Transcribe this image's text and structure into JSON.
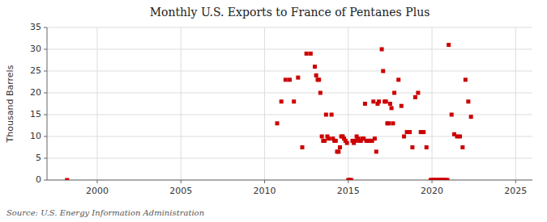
{
  "chart_data": {
    "type": "scatter",
    "title": "Monthly U.S. Exports to France of Pentanes Plus",
    "ylabel": "Thousand Barrels",
    "source": "Source: U.S. Energy Information Administration",
    "xlim": [
      1997,
      2026
    ],
    "ylim": [
      0,
      35
    ],
    "xticks": [
      2000,
      2005,
      2010,
      2015,
      2020,
      2025
    ],
    "yticks": [
      0,
      5,
      10,
      15,
      20,
      25,
      30,
      35
    ],
    "grid": true,
    "color": "#cc0000",
    "marker": "square",
    "x": [
      1998.2,
      2010.75,
      2011.0,
      2011.25,
      2011.5,
      2011.75,
      2012.0,
      2012.25,
      2012.5,
      2012.75,
      2013.0,
      2013.08,
      2013.17,
      2013.25,
      2013.33,
      2013.42,
      2013.5,
      2013.58,
      2013.67,
      2013.75,
      2013.83,
      2014.0,
      2014.08,
      2014.17,
      2014.25,
      2014.33,
      2014.42,
      2014.5,
      2014.58,
      2014.67,
      2014.75,
      2014.83,
      2014.92,
      2015.0,
      2015.08,
      2015.17,
      2015.25,
      2015.33,
      2015.42,
      2015.5,
      2015.58,
      2015.67,
      2015.75,
      2015.83,
      2015.92,
      2016.0,
      2016.08,
      2016.17,
      2016.25,
      2016.33,
      2016.42,
      2016.5,
      2016.58,
      2016.67,
      2016.75,
      2016.83,
      2017.0,
      2017.08,
      2017.17,
      2017.25,
      2017.33,
      2017.42,
      2017.5,
      2017.58,
      2017.67,
      2017.75,
      2018.0,
      2018.17,
      2018.33,
      2018.5,
      2018.67,
      2018.83,
      2019.0,
      2019.17,
      2019.33,
      2019.5,
      2019.67,
      2019.92,
      2020.0,
      2020.08,
      2020.17,
      2020.25,
      2020.33,
      2020.42,
      2020.5,
      2020.58,
      2020.67,
      2020.75,
      2020.83,
      2020.92,
      2021.0,
      2021.17,
      2021.33,
      2021.5,
      2021.67,
      2021.83,
      2022.0,
      2022.17,
      2022.33
    ],
    "values": [
      0,
      13.0,
      18.0,
      23.0,
      23.0,
      18.0,
      23.5,
      7.5,
      29.0,
      29.0,
      26.0,
      24.0,
      23.0,
      23.0,
      20.0,
      10.0,
      9.0,
      9.0,
      15.0,
      10.0,
      9.5,
      15.0,
      9.5,
      9.0,
      9.0,
      6.5,
      6.5,
      7.5,
      10.0,
      10.0,
      9.5,
      9.0,
      8.5,
      0,
      0,
      0,
      9.0,
      8.5,
      9.0,
      10.0,
      9.5,
      9.0,
      9.0,
      9.5,
      9.5,
      17.5,
      9.0,
      9.0,
      9.0,
      9.0,
      9.0,
      18.0,
      9.5,
      6.5,
      17.5,
      18.0,
      30.0,
      25.0,
      18.0,
      18.0,
      13.0,
      13.0,
      17.5,
      16.5,
      13.0,
      20.0,
      23.0,
      17.0,
      10.0,
      11.0,
      11.0,
      7.5,
      19.0,
      20.0,
      11.0,
      11.0,
      7.5,
      0,
      0,
      0,
      0,
      0,
      0,
      0,
      0,
      0,
      0,
      0,
      0,
      0,
      31.0,
      15.0,
      10.5,
      10.0,
      10.0,
      7.5,
      23.0,
      18.0,
      14.5
    ]
  }
}
